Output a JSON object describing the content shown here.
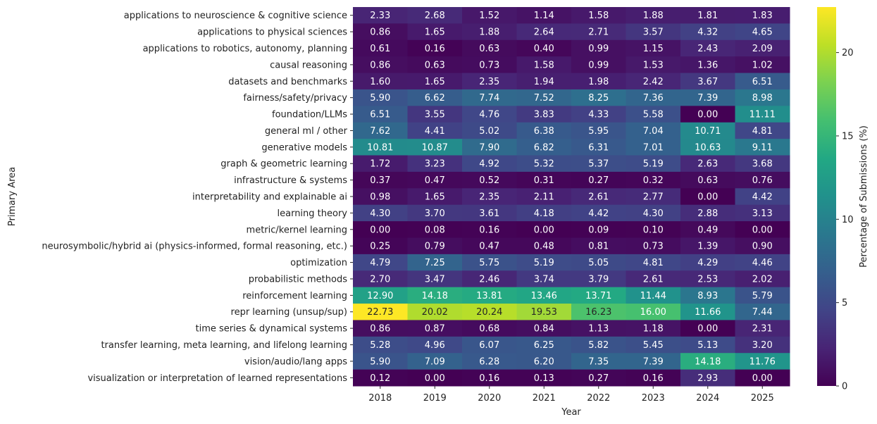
{
  "chart_data": {
    "type": "heatmap",
    "xlabel": "Year",
    "ylabel": "Primary Area",
    "colorbar_label": "Percentage of Submissions (%)",
    "colormap": "viridis",
    "color_range": [
      0,
      22.73
    ],
    "colorbar_ticks": [
      0,
      5,
      10,
      15,
      20
    ],
    "x": [
      "2018",
      "2019",
      "2020",
      "2021",
      "2022",
      "2023",
      "2024",
      "2025"
    ],
    "y": [
      "applications to neuroscience & cognitive science",
      "applications to physical sciences",
      "applications to robotics, autonomy, planning",
      "causal reasoning",
      "datasets and benchmarks",
      "fairness/safety/privacy",
      "foundation/LLMs",
      "general ml / other",
      "generative models",
      "graph & geometric learning",
      "infrastructure & systems",
      "interpretability and explainable ai",
      "learning theory",
      "metric/kernel learning",
      "neurosymbolic/hybrid ai (physics-informed, formal reasoning, etc.)",
      "optimization",
      "probabilistic methods",
      "reinforcement learning",
      "repr learning (unsup/sup)",
      "time series & dynamical systems",
      "transfer learning, meta learning, and lifelong learning",
      "vision/audio/lang apps",
      "visualization or interpretation of learned representations"
    ],
    "values": [
      [
        2.33,
        2.68,
        1.52,
        1.14,
        1.58,
        1.88,
        1.81,
        1.83
      ],
      [
        0.86,
        1.65,
        1.88,
        2.64,
        2.71,
        3.57,
        4.32,
        4.65
      ],
      [
        0.61,
        0.16,
        0.63,
        0.4,
        0.99,
        1.15,
        2.43,
        2.09
      ],
      [
        0.86,
        0.63,
        0.73,
        1.58,
        0.99,
        1.53,
        1.36,
        1.02
      ],
      [
        1.6,
        1.65,
        2.35,
        1.94,
        1.98,
        2.42,
        3.67,
        6.51
      ],
      [
        5.9,
        6.62,
        7.74,
        7.52,
        8.25,
        7.36,
        7.39,
        8.98
      ],
      [
        6.51,
        3.55,
        4.76,
        3.83,
        4.33,
        5.58,
        0.0,
        11.11
      ],
      [
        7.62,
        4.41,
        5.02,
        6.38,
        5.95,
        7.04,
        10.71,
        4.81
      ],
      [
        10.81,
        10.87,
        7.9,
        6.82,
        6.31,
        7.01,
        10.63,
        9.11
      ],
      [
        1.72,
        3.23,
        4.92,
        5.32,
        5.37,
        5.19,
        2.63,
        3.68
      ],
      [
        0.37,
        0.47,
        0.52,
        0.31,
        0.27,
        0.32,
        0.63,
        0.76
      ],
      [
        0.98,
        1.65,
        2.35,
        2.11,
        2.61,
        2.77,
        0.0,
        4.42
      ],
      [
        4.3,
        3.7,
        3.61,
        4.18,
        4.42,
        4.3,
        2.88,
        3.13
      ],
      [
        0.0,
        0.08,
        0.16,
        0.0,
        0.09,
        0.1,
        0.49,
        0.0
      ],
      [
        0.25,
        0.79,
        0.47,
        0.48,
        0.81,
        0.73,
        1.39,
        0.9
      ],
      [
        4.79,
        7.25,
        5.75,
        5.19,
        5.05,
        4.81,
        4.29,
        4.46
      ],
      [
        2.7,
        3.47,
        2.46,
        3.74,
        3.79,
        2.61,
        2.53,
        2.02
      ],
      [
        12.9,
        14.18,
        13.81,
        13.46,
        13.71,
        11.44,
        8.93,
        5.79
      ],
      [
        22.73,
        20.02,
        20.24,
        19.53,
        16.23,
        16.0,
        11.66,
        7.44
      ],
      [
        0.86,
        0.87,
        0.68,
        0.84,
        1.13,
        1.18,
        0.0,
        2.31
      ],
      [
        5.28,
        4.96,
        6.07,
        6.25,
        5.82,
        5.45,
        5.13,
        3.2
      ],
      [
        5.9,
        7.09,
        6.28,
        6.2,
        7.35,
        7.39,
        14.18,
        11.76
      ],
      [
        0.12,
        0.0,
        0.16,
        0.13,
        0.27,
        0.16,
        2.93,
        0.0
      ]
    ]
  }
}
